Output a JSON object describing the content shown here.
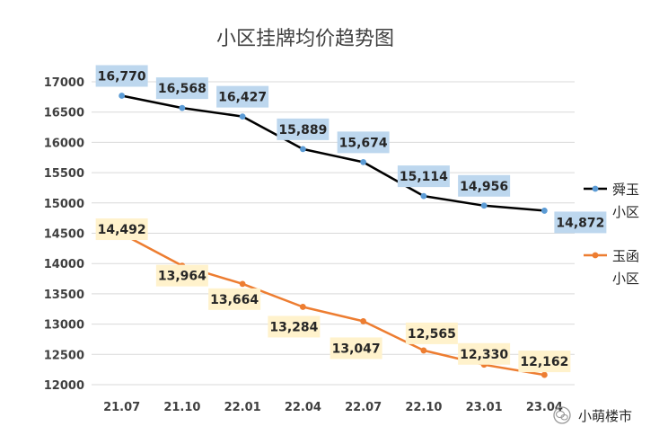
{
  "chart_data": {
    "type": "line",
    "title": "小区挂牌均价趋势图",
    "categories": [
      "21.07",
      "21.10",
      "22.01",
      "22.04",
      "22.07",
      "22.10",
      "23.01",
      "23.04"
    ],
    "y_ticks": [
      "17000",
      "16500",
      "16000",
      "15500",
      "15000",
      "14500",
      "14000",
      "13500",
      "13000",
      "12500",
      "12000"
    ],
    "ylim": [
      12000,
      17000
    ],
    "grid": true,
    "legend_position": "right",
    "series": [
      {
        "name_lines": [
          "舜玉",
          "小区"
        ],
        "color": "#000000",
        "label_bg": "#bdd7ee",
        "values": [
          16770,
          16568,
          16427,
          15889,
          15674,
          15114,
          14956,
          14872
        ],
        "labels": [
          "16,770",
          "16,568",
          "16,427",
          "15,889",
          "15,674",
          "15,114",
          "14,956",
          "14,872"
        ]
      },
      {
        "name_lines": [
          "玉函",
          "小区"
        ],
        "color": "#ed7d31",
        "label_bg": "#fff2cc",
        "values": [
          14492,
          13964,
          13664,
          13284,
          13047,
          12565,
          12330,
          12162
        ],
        "labels": [
          "14,492",
          "13,964",
          "13,664",
          "13,284",
          "13,047",
          "12,565",
          "12,330",
          "12,162"
        ]
      }
    ]
  },
  "watermark": {
    "text": "小萌楼市",
    "icon": "wechat-icon"
  }
}
